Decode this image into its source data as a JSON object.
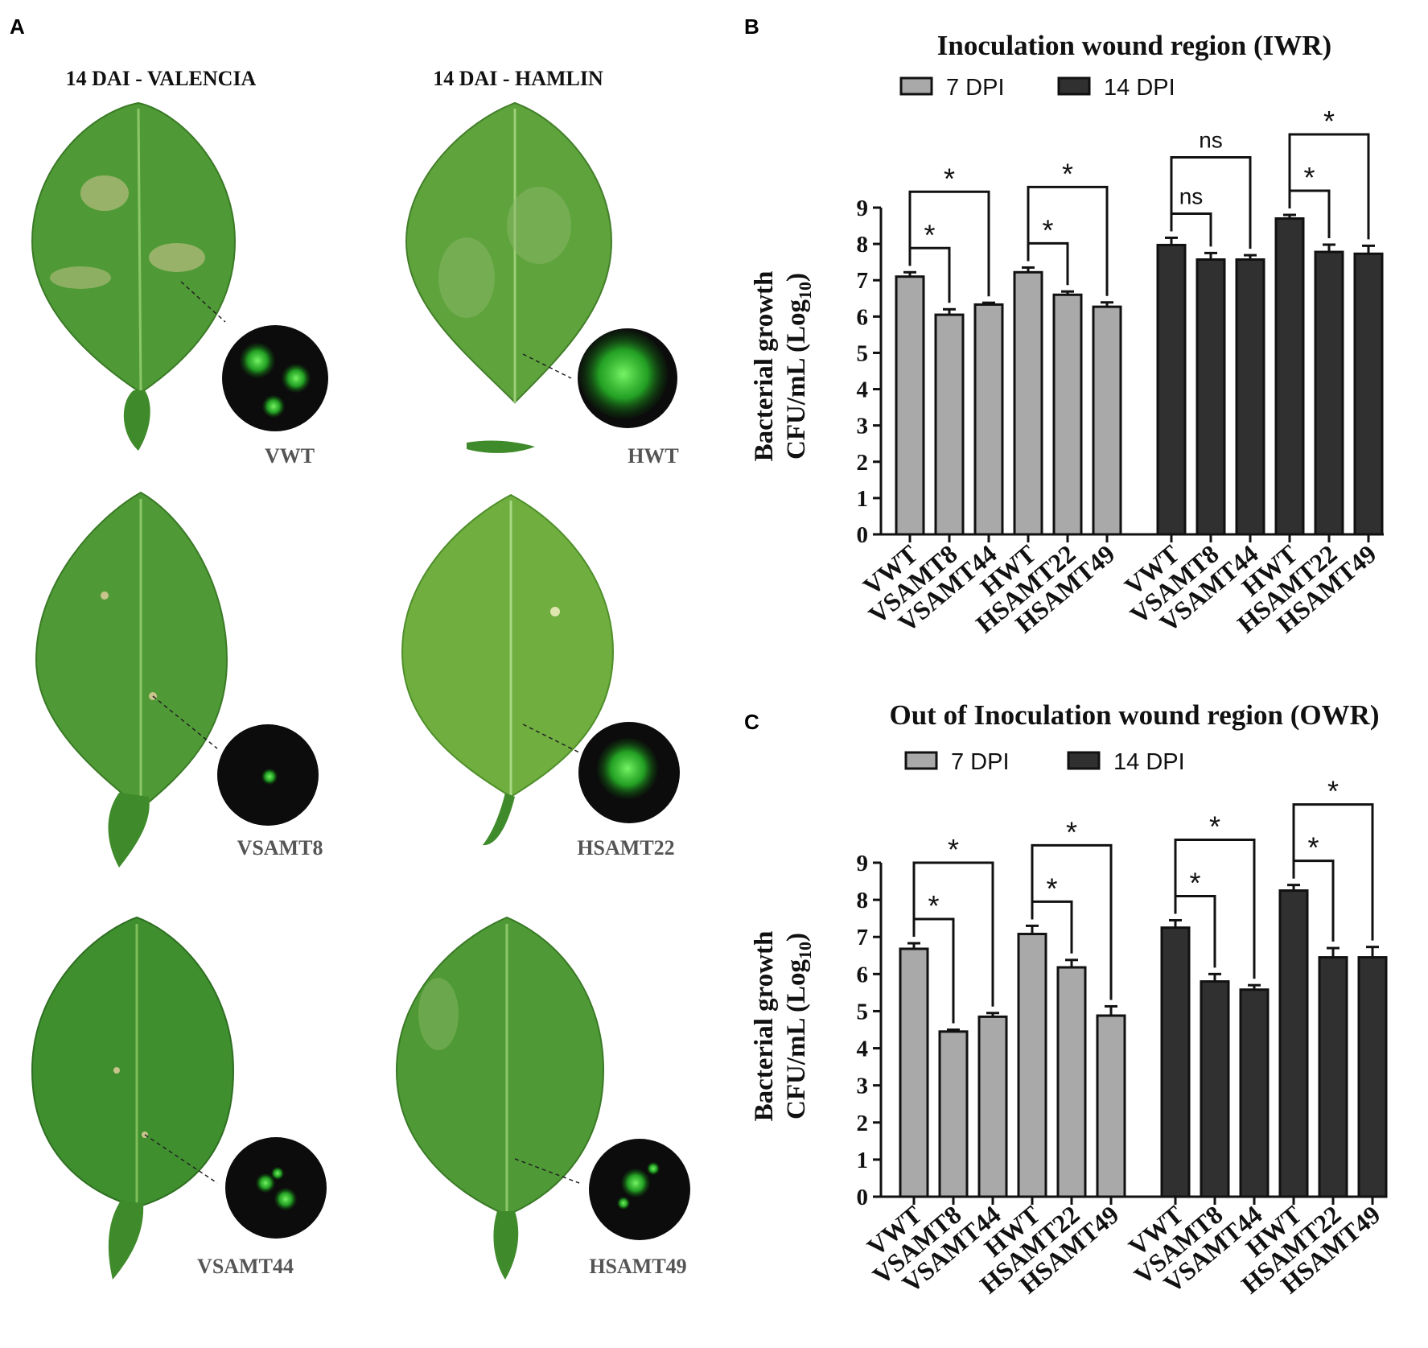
{
  "panel_a": {
    "letter": "A",
    "col_titles": [
      "14 DAI - VALENCIA",
      "14 DAI - HAMLIN"
    ],
    "leaf_labels": [
      "VWT",
      "HWT",
      "VSAMT8",
      "HSAMT22",
      "VSAMT44",
      "HSAMT49"
    ],
    "colors": {
      "leaf_dark": "#3f8f2f",
      "leaf_light": "#6fae3f",
      "gfp": "#3cff3c",
      "inset_bg": "#0c0c0c"
    }
  },
  "chart_data": [
    {
      "letter": "B",
      "type": "bar",
      "title": "Inoculation wound region (IWR)",
      "legend": [
        "7 DPI",
        "14 DPI"
      ],
      "legend_placement": "top",
      "ylabel": [
        "Bacterial growth",
        "CFU/mL (Log",
        "10",
        ")"
      ],
      "ylim": [
        0,
        9
      ],
      "yticks": [
        "0",
        "1",
        "2",
        "3",
        "4",
        "5",
        "6",
        "7",
        "8",
        "9"
      ],
      "series": [
        {
          "name": "7 DPI",
          "color": "#a9a9a9",
          "categories": [
            "VWT",
            "VSAMT8",
            "VSAMT44",
            "HWT",
            "HSAMT22",
            "HSAMT49"
          ],
          "values": [
            7.1,
            6.05,
            6.33,
            7.22,
            6.6,
            6.27
          ],
          "errors": [
            0.12,
            0.15,
            0.05,
            0.13,
            0.09,
            0.12
          ]
        },
        {
          "name": "14 DPI",
          "color": "#303030",
          "categories": [
            "VWT",
            "VSAMT8",
            "VSAMT44",
            "HWT",
            "HSAMT22",
            "HSAMT49"
          ],
          "values": [
            7.97,
            7.57,
            7.57,
            8.7,
            7.78,
            7.73
          ],
          "errors": [
            0.2,
            0.18,
            0.12,
            0.1,
            0.2,
            0.22
          ]
        }
      ],
      "significance": [
        {
          "series": 0,
          "from": 0,
          "to": 1,
          "label": "*"
        },
        {
          "series": 0,
          "from": 0,
          "to": 2,
          "label": "*"
        },
        {
          "series": 0,
          "from": 3,
          "to": 4,
          "label": "*"
        },
        {
          "series": 0,
          "from": 3,
          "to": 5,
          "label": "*"
        },
        {
          "series": 1,
          "from": 0,
          "to": 1,
          "label": "ns"
        },
        {
          "series": 1,
          "from": 0,
          "to": 2,
          "label": "ns"
        },
        {
          "series": 1,
          "from": 3,
          "to": 4,
          "label": "*"
        },
        {
          "series": 1,
          "from": 3,
          "to": 5,
          "label": "*"
        }
      ]
    },
    {
      "letter": "C",
      "type": "bar",
      "title": "Out of Inoculation wound region (OWR)",
      "legend": [
        "7 DPI",
        "14 DPI"
      ],
      "legend_placement": "top",
      "ylabel": [
        "Bacterial growth",
        "CFU/mL (Log",
        "10",
        ")"
      ],
      "ylim": [
        0,
        9
      ],
      "yticks": [
        "0",
        "1",
        "2",
        "3",
        "4",
        "5",
        "6",
        "7",
        "8",
        "9"
      ],
      "series": [
        {
          "name": "7 DPI",
          "color": "#a9a9a9",
          "categories": [
            "VWT",
            "VSAMT8",
            "VSAMT44",
            "HWT",
            "HSAMT22",
            "HSAMT49"
          ],
          "values": [
            6.68,
            4.45,
            4.85,
            7.08,
            6.18,
            4.88
          ],
          "errors": [
            0.15,
            0.05,
            0.1,
            0.22,
            0.2,
            0.25
          ]
        },
        {
          "name": "14 DPI",
          "color": "#303030",
          "categories": [
            "VWT",
            "VSAMT8",
            "VSAMT44",
            "HWT",
            "HSAMT22",
            "HSAMT49"
          ],
          "values": [
            7.25,
            5.8,
            5.58,
            8.25,
            6.45,
            6.45
          ],
          "errors": [
            0.2,
            0.2,
            0.12,
            0.15,
            0.25,
            0.28
          ]
        }
      ],
      "significance": [
        {
          "series": 0,
          "from": 0,
          "to": 1,
          "label": "*"
        },
        {
          "series": 0,
          "from": 0,
          "to": 2,
          "label": "*"
        },
        {
          "series": 0,
          "from": 3,
          "to": 4,
          "label": "*"
        },
        {
          "series": 0,
          "from": 3,
          "to": 5,
          "label": "*"
        },
        {
          "series": 1,
          "from": 0,
          "to": 1,
          "label": "*"
        },
        {
          "series": 1,
          "from": 0,
          "to": 2,
          "label": "*"
        },
        {
          "series": 1,
          "from": 3,
          "to": 4,
          "label": "*"
        },
        {
          "series": 1,
          "from": 3,
          "to": 5,
          "label": "*"
        }
      ]
    }
  ]
}
